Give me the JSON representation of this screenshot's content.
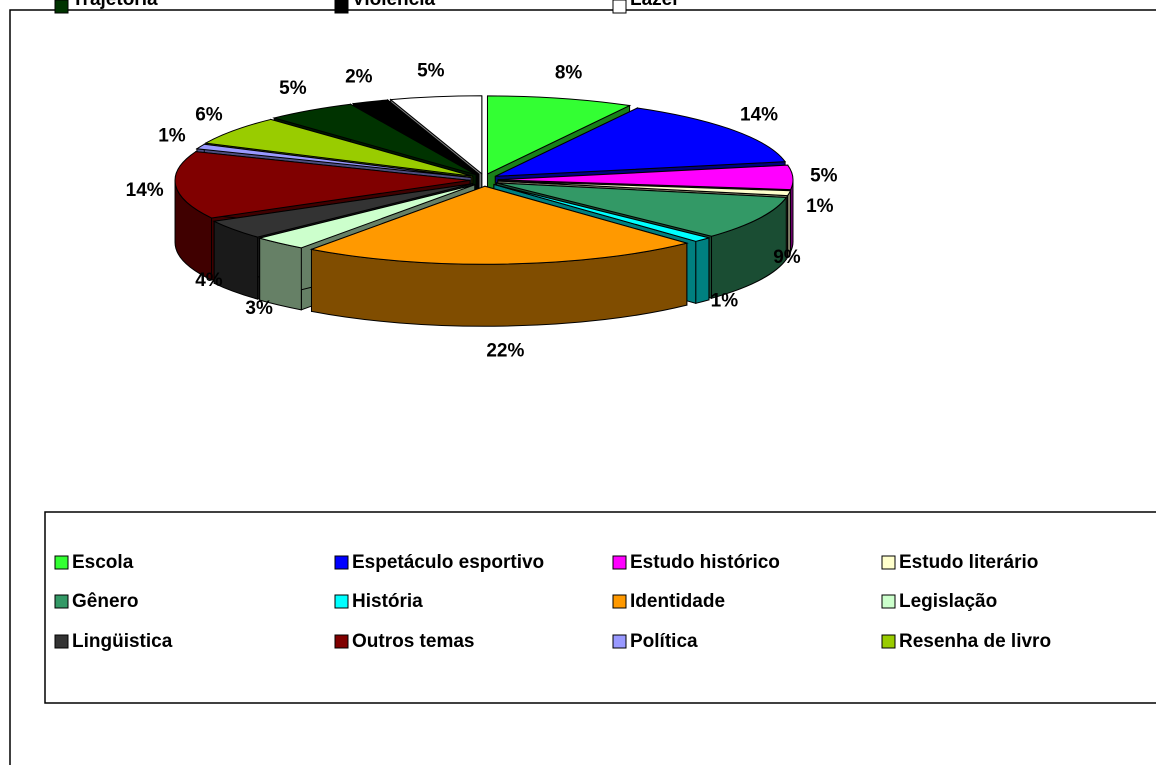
{
  "chart_data": {
    "type": "pie3d",
    "categories": [
      "Escola",
      "Espetáculo esportivo",
      "Estudo histórico",
      "Estudo literário",
      "Gênero",
      "História",
      "Identidade",
      "Legislação",
      "Lingüistica",
      "Outros temas",
      "Política",
      "Resenha de livro",
      "Trajetória",
      "Violência",
      "Lazer"
    ],
    "values": [
      8,
      14,
      5,
      1,
      9,
      1,
      22,
      3,
      4,
      14,
      1,
      6,
      5,
      2,
      5
    ],
    "value_labels": [
      "8%",
      "14%",
      "5%",
      "1%",
      "9%",
      "1%",
      "22%",
      "3%",
      "4%",
      "14%",
      "1%",
      "6%",
      "5%",
      "2%",
      "5%"
    ],
    "colors": [
      "#33ff33",
      "#0000ff",
      "#ff00ff",
      "#ffffcc",
      "#339966",
      "#00ffff",
      "#ff9900",
      "#ccffcc",
      "#333333",
      "#800000",
      "#9999ff",
      "#99cc00",
      "#003300",
      "#000000",
      "#ffffff"
    ],
    "legend": "bottom"
  }
}
